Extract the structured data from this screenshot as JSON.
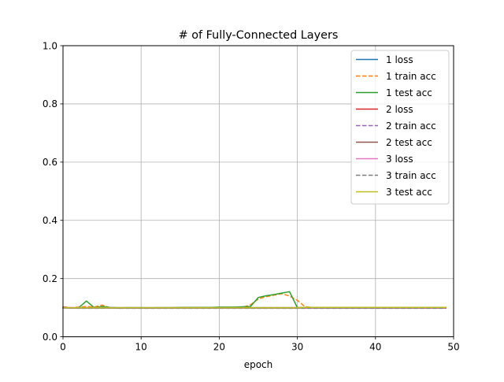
{
  "chart_data": {
    "type": "line",
    "title": "# of Fully-Connected Layers",
    "xlabel": "epoch",
    "ylabel": "",
    "xlim": [
      0,
      50
    ],
    "ylim": [
      0.0,
      1.0
    ],
    "x_ticks": [
      "0",
      "10",
      "20",
      "30",
      "40",
      "50"
    ],
    "y_ticks": [
      "0.0",
      "0.2",
      "0.4",
      "0.6",
      "0.8",
      "1.0"
    ],
    "grid": true,
    "legend_position": "top-right",
    "x": [
      0,
      1,
      2,
      3,
      4,
      5,
      6,
      7,
      8,
      9,
      10,
      11,
      12,
      13,
      14,
      15,
      16,
      17,
      18,
      19,
      20,
      21,
      22,
      23,
      24,
      25,
      26,
      27,
      28,
      29,
      30,
      31,
      32,
      33,
      34,
      35,
      36,
      37,
      38,
      39,
      40,
      41,
      42,
      43,
      44,
      45,
      46,
      47,
      48,
      49
    ],
    "series": [
      {
        "name": "1 loss",
        "color": "#1f77b4",
        "dashed": false,
        "values": [
          0.1,
          0.099,
          0.1,
          0.1,
          0.1,
          0.1,
          0.1,
          0.099,
          0.1,
          0.1,
          0.1,
          0.099,
          0.1,
          0.1,
          0.1,
          0.1,
          0.1,
          0.1,
          0.1,
          0.1,
          0.1,
          0.1,
          0.1,
          0.1,
          0.1,
          0.1,
          0.1,
          0.1,
          0.1,
          0.1,
          0.1,
          0.101,
          0.101,
          0.101,
          0.101,
          0.101,
          0.101,
          0.101,
          0.101,
          0.101,
          0.101,
          0.101,
          0.101,
          0.101,
          0.101,
          0.101,
          0.101,
          0.101,
          0.101,
          0.101
        ]
      },
      {
        "name": "1 train acc",
        "color": "#ff7f0e",
        "dashed": true,
        "values": [
          0.103,
          0.1,
          0.102,
          0.104,
          0.102,
          0.109,
          0.1,
          0.098,
          0.099,
          0.099,
          0.099,
          0.099,
          0.099,
          0.099,
          0.1,
          0.1,
          0.1,
          0.1,
          0.1,
          0.101,
          0.101,
          0.101,
          0.101,
          0.101,
          0.11,
          0.13,
          0.138,
          0.143,
          0.148,
          0.14,
          0.125,
          0.103,
          0.101,
          0.101,
          0.101,
          0.101,
          0.101,
          0.101,
          0.101,
          0.101,
          0.101,
          0.101,
          0.101,
          0.101,
          0.101,
          0.101,
          0.101,
          0.101,
          0.101,
          0.101
        ]
      },
      {
        "name": "1 test acc",
        "color": "#2ca02c",
        "dashed": false,
        "values": [
          0.1,
          0.099,
          0.1,
          0.123,
          0.1,
          0.104,
          0.101,
          0.1,
          0.1,
          0.1,
          0.1,
          0.1,
          0.1,
          0.1,
          0.1,
          0.101,
          0.101,
          0.101,
          0.101,
          0.101,
          0.102,
          0.102,
          0.102,
          0.103,
          0.104,
          0.135,
          0.141,
          0.145,
          0.15,
          0.155,
          0.1,
          0.101,
          0.101,
          0.101,
          0.101,
          0.101,
          0.101,
          0.101,
          0.101,
          0.101,
          0.101,
          0.101,
          0.101,
          0.101,
          0.101,
          0.101,
          0.101,
          0.101,
          0.101,
          0.101
        ]
      },
      {
        "name": "2 loss",
        "color": "#d62728",
        "dashed": false,
        "values": [
          0.101,
          0.099,
          0.099,
          0.099,
          0.099,
          0.099,
          0.099,
          0.099,
          0.099,
          0.099,
          0.099,
          0.099,
          0.099,
          0.099,
          0.099,
          0.099,
          0.099,
          0.099,
          0.099,
          0.099,
          0.099,
          0.099,
          0.099,
          0.099,
          0.099,
          0.099,
          0.099,
          0.099,
          0.099,
          0.099,
          0.099,
          0.099,
          0.099,
          0.099,
          0.099,
          0.099,
          0.099,
          0.099,
          0.099,
          0.099,
          0.099,
          0.099,
          0.099,
          0.099,
          0.099,
          0.099,
          0.099,
          0.099,
          0.099,
          0.099
        ]
      },
      {
        "name": "2 train acc",
        "color": "#9467bd",
        "dashed": true,
        "values": [
          0.099,
          0.099,
          0.099,
          0.099,
          0.099,
          0.099,
          0.099,
          0.099,
          0.099,
          0.099,
          0.099,
          0.099,
          0.099,
          0.099,
          0.099,
          0.099,
          0.099,
          0.099,
          0.099,
          0.099,
          0.099,
          0.099,
          0.099,
          0.099,
          0.099,
          0.099,
          0.099,
          0.099,
          0.099,
          0.099,
          0.099,
          0.099,
          0.099,
          0.099,
          0.099,
          0.099,
          0.099,
          0.099,
          0.099,
          0.099,
          0.099,
          0.099,
          0.099,
          0.099,
          0.099,
          0.099,
          0.099,
          0.099,
          0.099,
          0.099
        ]
      },
      {
        "name": "2 test acc",
        "color": "#8c564b",
        "dashed": false,
        "values": [
          0.099,
          0.099,
          0.099,
          0.099,
          0.099,
          0.099,
          0.099,
          0.099,
          0.099,
          0.099,
          0.099,
          0.099,
          0.099,
          0.099,
          0.099,
          0.099,
          0.099,
          0.099,
          0.099,
          0.099,
          0.099,
          0.099,
          0.099,
          0.099,
          0.099,
          0.099,
          0.099,
          0.099,
          0.099,
          0.099,
          0.099,
          0.099,
          0.099,
          0.099,
          0.099,
          0.099,
          0.099,
          0.099,
          0.099,
          0.099,
          0.099,
          0.099,
          0.099,
          0.099,
          0.099,
          0.099,
          0.099,
          0.099,
          0.099,
          0.099
        ]
      },
      {
        "name": "3 loss",
        "color": "#e377c2",
        "dashed": false,
        "values": [
          0.1,
          0.1,
          0.1,
          0.1,
          0.1,
          0.1,
          0.1,
          0.1,
          0.1,
          0.1,
          0.1,
          0.1,
          0.1,
          0.1,
          0.1,
          0.1,
          0.1,
          0.1,
          0.1,
          0.1,
          0.1,
          0.1,
          0.1,
          0.1,
          0.1,
          0.1,
          0.1,
          0.1,
          0.1,
          0.1,
          0.1,
          0.1,
          0.1,
          0.1,
          0.1,
          0.1,
          0.1,
          0.1,
          0.1,
          0.1,
          0.1,
          0.1,
          0.1,
          0.1,
          0.1,
          0.1,
          0.1,
          0.1,
          0.1,
          0.1
        ]
      },
      {
        "name": "3 train acc",
        "color": "#7f7f7f",
        "dashed": true,
        "values": [
          0.101,
          0.099,
          0.098,
          0.098,
          0.098,
          0.098,
          0.099,
          0.098,
          0.098,
          0.098,
          0.098,
          0.098,
          0.098,
          0.098,
          0.098,
          0.098,
          0.098,
          0.098,
          0.098,
          0.098,
          0.098,
          0.098,
          0.098,
          0.098,
          0.098,
          0.098,
          0.098,
          0.098,
          0.098,
          0.098,
          0.098,
          0.098,
          0.098,
          0.098,
          0.098,
          0.098,
          0.098,
          0.098,
          0.098,
          0.098,
          0.098,
          0.098,
          0.098,
          0.098,
          0.098,
          0.098,
          0.098,
          0.098,
          0.098,
          0.098
        ]
      },
      {
        "name": "3 test acc",
        "color": "#bcbd22",
        "dashed": false,
        "values": [
          0.1,
          0.1,
          0.1,
          0.1,
          0.1,
          0.1,
          0.1,
          0.1,
          0.1,
          0.1,
          0.1,
          0.1,
          0.1,
          0.1,
          0.1,
          0.1,
          0.1,
          0.1,
          0.1,
          0.1,
          0.1,
          0.1,
          0.1,
          0.1,
          0.1,
          0.1,
          0.1,
          0.1,
          0.1,
          0.1,
          0.1,
          0.101,
          0.101,
          0.101,
          0.101,
          0.101,
          0.101,
          0.101,
          0.101,
          0.101,
          0.101,
          0.101,
          0.101,
          0.101,
          0.101,
          0.101,
          0.101,
          0.101,
          0.101,
          0.101
        ]
      }
    ]
  }
}
